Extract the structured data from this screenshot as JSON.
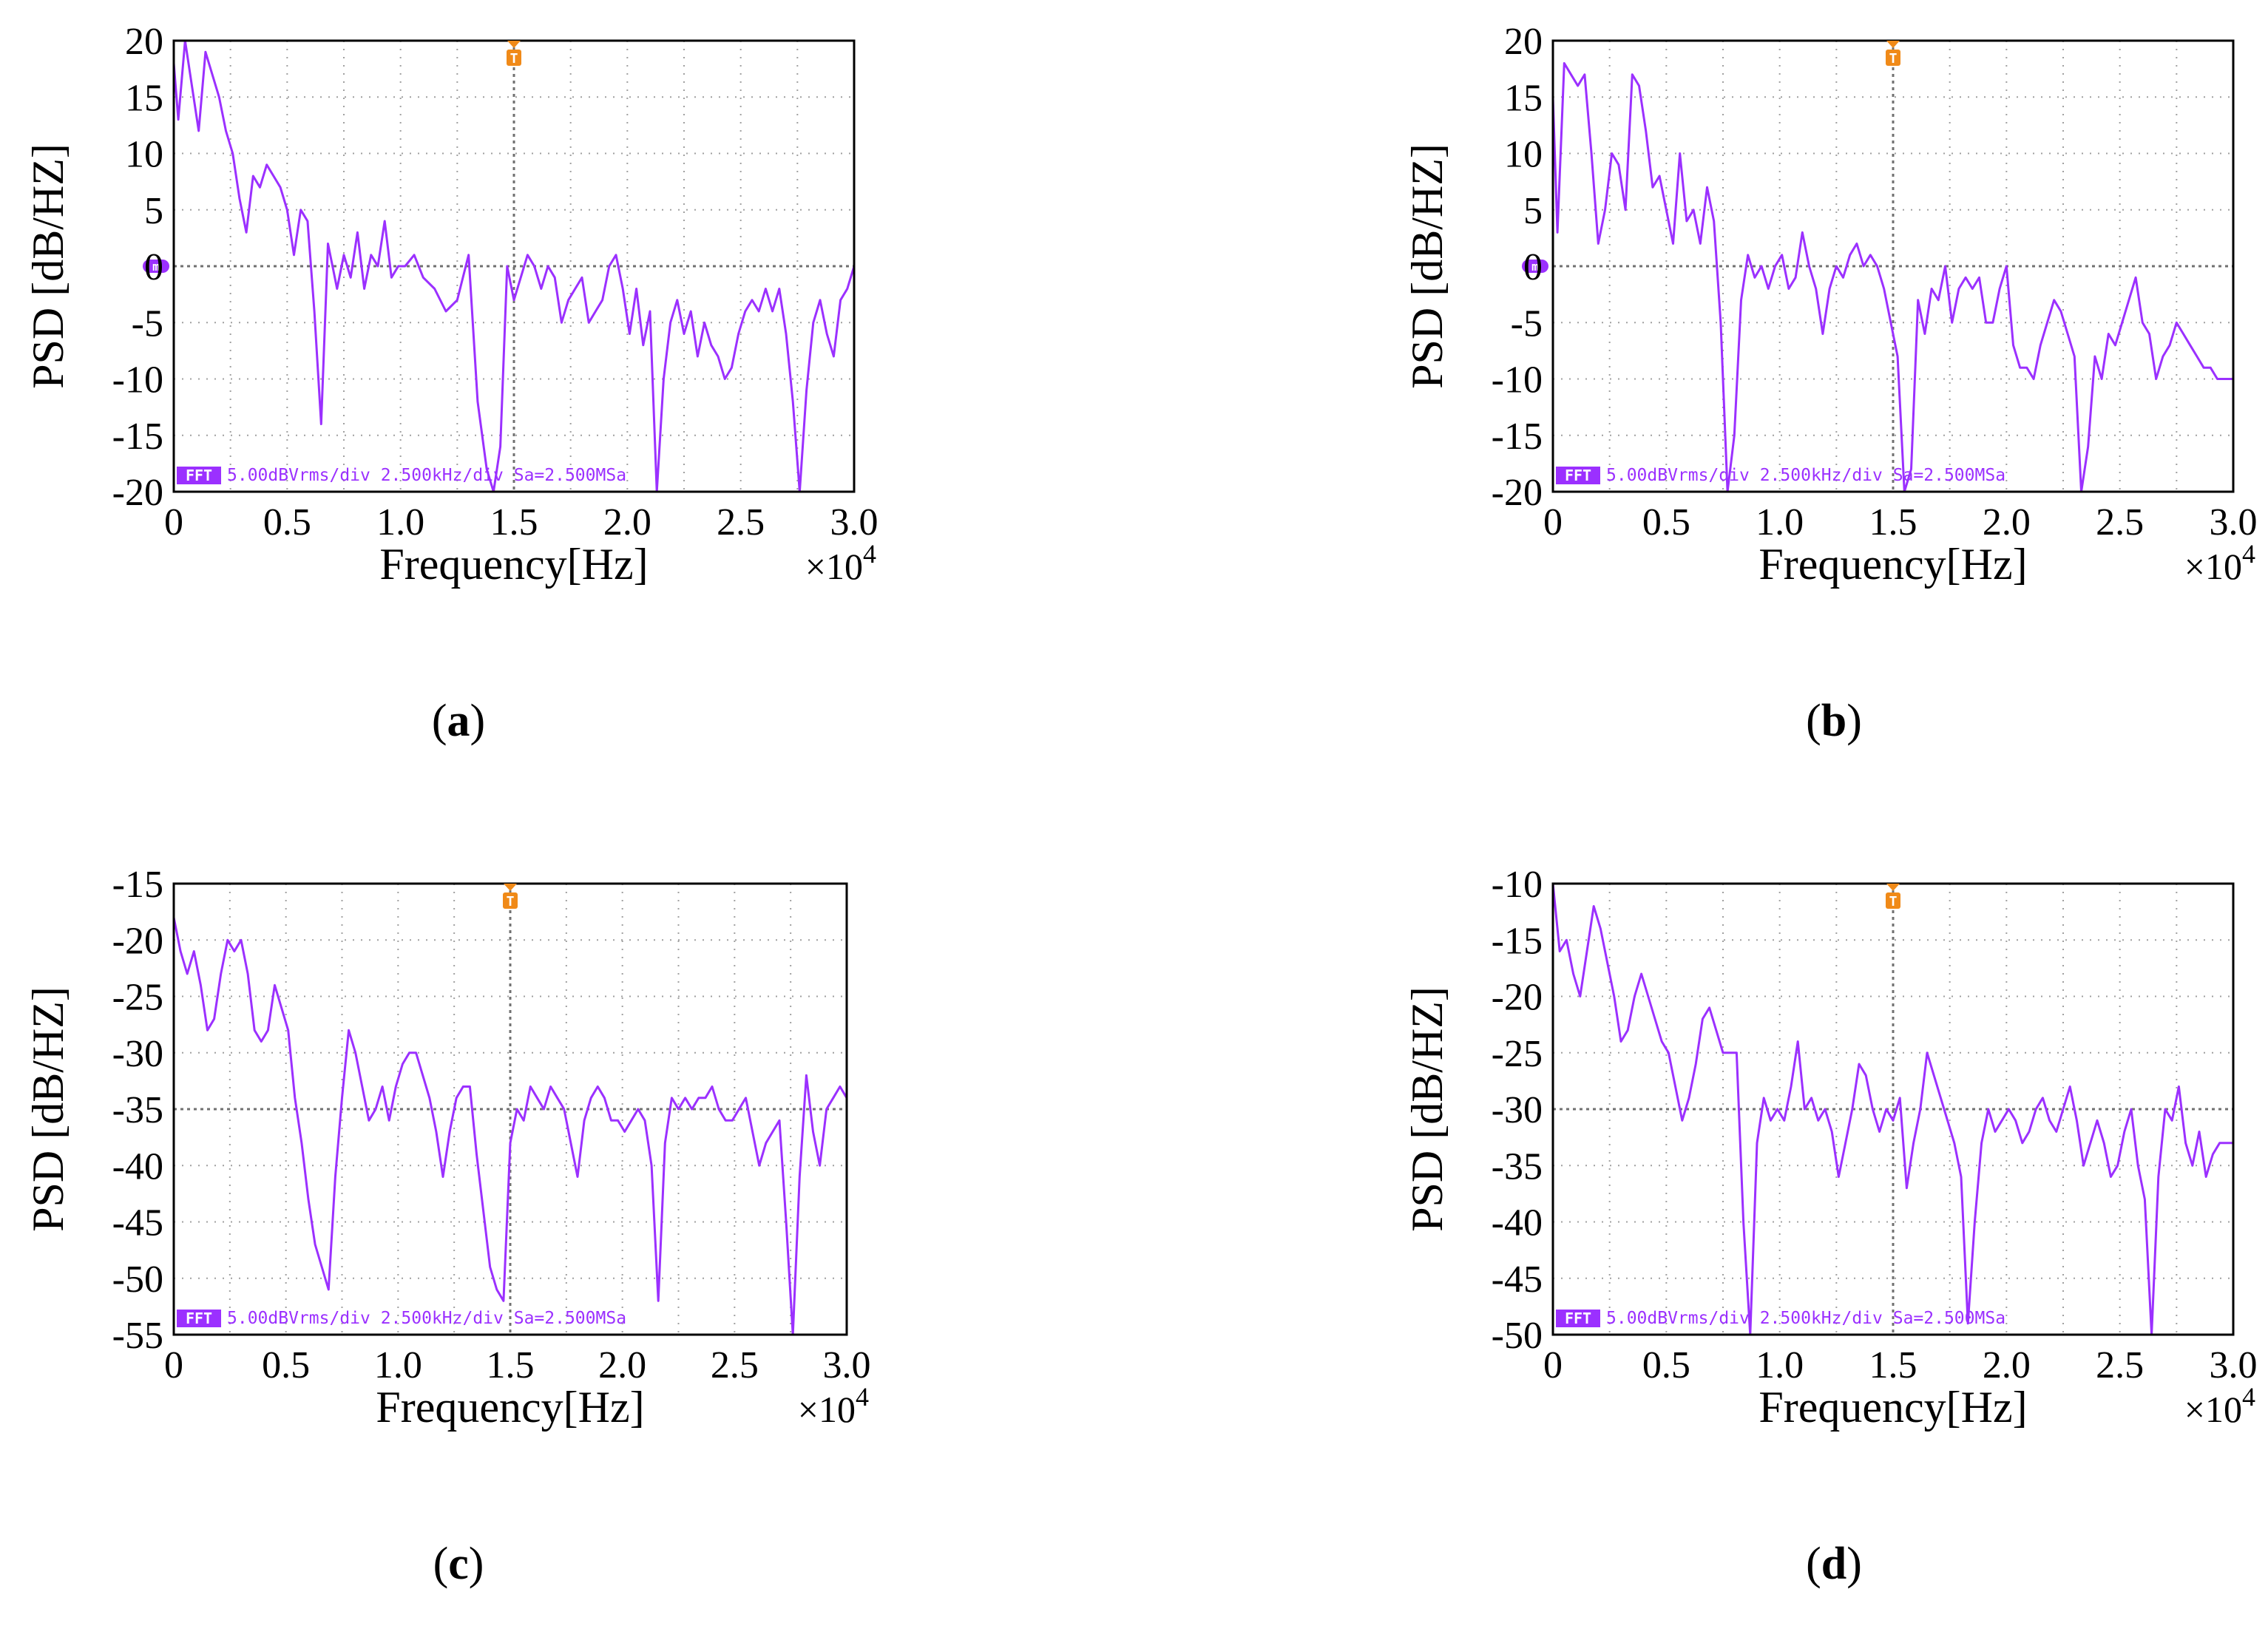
{
  "colors": {
    "trace": "#9b30ff",
    "marker": "#f08a18",
    "grid": "#a0a0a0",
    "axis": "#000000"
  },
  "chart_data": [
    {
      "id": "a",
      "type": "line",
      "caption": "a",
      "xlabel": "Frequency[Hz]",
      "ylabel": "PSD [dB/HZ]",
      "xlim": [
        0,
        30000
      ],
      "ylim": [
        -20,
        20
      ],
      "x_ticks": [
        "0",
        "0.5",
        "1.0",
        "1.5",
        "2.0",
        "2.5",
        "3.0"
      ],
      "y_ticks": [
        "20",
        "15",
        "10",
        "5",
        "0",
        "-5",
        "-10",
        "-15",
        "-20"
      ],
      "x_exponent_prefix": "×10",
      "x_exponent_power": "4",
      "scope_label": "FFT",
      "scope_info": "5.00dBVrms/div 2.500kHz/div Sa=2.500MSa",
      "marker_label": "T",
      "marker_x": 15000,
      "ground_label": "m",
      "ground_y": 0,
      "x": [
        0,
        200,
        500,
        800,
        1100,
        1400,
        1700,
        2000,
        2300,
        2600,
        2900,
        3200,
        3500,
        3800,
        4100,
        4400,
        4700,
        5000,
        5300,
        5600,
        5900,
        6200,
        6500,
        6800,
        7000,
        7200,
        7500,
        7800,
        8100,
        8400,
        8700,
        9000,
        9300,
        9600,
        9900,
        10200,
        10600,
        11000,
        11500,
        12000,
        12500,
        13000,
        13400,
        13800,
        14100,
        14400,
        14700,
        15000,
        15300,
        15600,
        15900,
        16200,
        16500,
        16800,
        17100,
        17400,
        17700,
        18000,
        18300,
        18600,
        18900,
        19200,
        19500,
        19800,
        20100,
        20400,
        20700,
        21000,
        21300,
        21600,
        21900,
        22200,
        22500,
        22800,
        23100,
        23400,
        23700,
        24000,
        24300,
        24600,
        24900,
        25200,
        25500,
        25800,
        26100,
        26400,
        26700,
        27000,
        27300,
        27600,
        27900,
        28200,
        28500,
        28800,
        29100,
        29400,
        29700,
        30000
      ],
      "values": [
        18,
        13,
        20,
        16,
        12,
        19,
        17,
        15,
        12,
        10,
        6,
        3,
        8,
        7,
        9,
        8,
        7,
        5,
        1,
        5,
        4,
        -4,
        -14,
        2,
        0,
        -2,
        1,
        -1,
        3,
        -2,
        1,
        0,
        4,
        -1,
        0,
        0,
        1,
        -1,
        -2,
        -4,
        -3,
        1,
        -12,
        -18,
        -20,
        -16,
        0,
        -3,
        -1,
        1,
        0,
        -2,
        0,
        -1,
        -5,
        -3,
        -2,
        -1,
        -5,
        -4,
        -3,
        0,
        1,
        -2,
        -6,
        -2,
        -7,
        -4,
        -20,
        -10,
        -5,
        -3,
        -6,
        -4,
        -8,
        -5,
        -7,
        -8,
        -10,
        -9,
        -6,
        -4,
        -3,
        -4,
        -2,
        -4,
        -2,
        -6,
        -12,
        -20,
        -11,
        -5,
        -3,
        -6,
        -8,
        -3,
        -2,
        0
      ]
    },
    {
      "id": "b",
      "type": "line",
      "caption": "b",
      "xlabel": "Frequency[Hz]",
      "ylabel": "PSD [dB/HZ]",
      "xlim": [
        0,
        30000
      ],
      "ylim": [
        -20,
        20
      ],
      "x_ticks": [
        "0",
        "0.5",
        "1.0",
        "1.5",
        "2.0",
        "2.5",
        "3.0"
      ],
      "y_ticks": [
        "20",
        "15",
        "10",
        "5",
        "0",
        "-5",
        "-10",
        "-15",
        "-20"
      ],
      "x_exponent_prefix": "×10",
      "x_exponent_power": "4",
      "scope_label": "FFT",
      "scope_info": "5.00dBVrms/div 2.500kHz/div Sa=2.500MSa",
      "marker_label": "T",
      "marker_x": 15000,
      "ground_label": "m",
      "ground_y": 0,
      "x": [
        0,
        200,
        500,
        800,
        1100,
        1400,
        1700,
        2000,
        2300,
        2600,
        2900,
        3200,
        3500,
        3800,
        4100,
        4400,
        4700,
        5000,
        5300,
        5600,
        5900,
        6200,
        6500,
        6800,
        7100,
        7400,
        7700,
        8000,
        8300,
        8600,
        8900,
        9200,
        9500,
        9800,
        10100,
        10400,
        10700,
        11000,
        11300,
        11600,
        11900,
        12200,
        12500,
        12800,
        13100,
        13400,
        13700,
        14000,
        14300,
        14600,
        14900,
        15200,
        15500,
        15800,
        16100,
        16400,
        16700,
        17000,
        17300,
        17600,
        17900,
        18200,
        18500,
        18800,
        19100,
        19400,
        19700,
        20000,
        20300,
        20600,
        20900,
        21200,
        21500,
        21800,
        22100,
        22400,
        22700,
        23000,
        23300,
        23600,
        23900,
        24200,
        24500,
        24800,
        25100,
        25400,
        25700,
        26000,
        26300,
        26600,
        26900,
        27200,
        27500,
        27800,
        28100,
        28400,
        28700,
        29000,
        29300,
        29700,
        30000
      ],
      "values": [
        15,
        3,
        18,
        17,
        16,
        17,
        10,
        2,
        5,
        10,
        9,
        5,
        17,
        16,
        12,
        7,
        8,
        5,
        2,
        10,
        4,
        5,
        2,
        7,
        4,
        -5,
        -20,
        -15,
        -3,
        1,
        -1,
        0,
        -2,
        0,
        1,
        -2,
        -1,
        3,
        0,
        -2,
        -6,
        -2,
        0,
        -1,
        1,
        2,
        0,
        1,
        0,
        -2,
        -5,
        -8,
        -20,
        -18,
        -3,
        -6,
        -2,
        -3,
        0,
        -5,
        -2,
        -1,
        -2,
        -1,
        -5,
        -5,
        -2,
        0,
        -7,
        -9,
        -9,
        -10,
        -7,
        -5,
        -3,
        -4,
        -6,
        -8,
        -20,
        -16,
        -8,
        -10,
        -6,
        -7,
        -5,
        -3,
        -1,
        -5,
        -6,
        -10,
        -8,
        -7,
        -5,
        -6,
        -7,
        -8,
        -9,
        -9,
        -10,
        -10,
        -10
      ]
    },
    {
      "id": "c",
      "type": "line",
      "caption": "c",
      "xlabel": "Frequency[Hz]",
      "ylabel": "PSD [dB/HZ]",
      "xlim": [
        0,
        30000
      ],
      "ylim": [
        -55,
        -15
      ],
      "x_ticks": [
        "0",
        "0.5",
        "1.0",
        "1.5",
        "2.0",
        "2.5",
        "3.0"
      ],
      "y_ticks": [
        "-15",
        "-20",
        "-25",
        "-30",
        "-35",
        "-40",
        "-45",
        "-50",
        "-55"
      ],
      "x_exponent_prefix": "×10",
      "x_exponent_power": "4",
      "scope_label": "FFT",
      "scope_info": "5.00dBVrms/div 2.500kHz/div Sa=2.500MSa",
      "marker_label": "T",
      "marker_x": 15000,
      "x": [
        0,
        300,
        600,
        900,
        1200,
        1500,
        1800,
        2100,
        2400,
        2700,
        3000,
        3300,
        3600,
        3900,
        4200,
        4500,
        4800,
        5100,
        5400,
        5700,
        6000,
        6300,
        6600,
        6900,
        7200,
        7500,
        7800,
        8100,
        8400,
        8700,
        9000,
        9300,
        9600,
        9900,
        10200,
        10500,
        10800,
        11100,
        11400,
        11700,
        12000,
        12300,
        12600,
        12900,
        13200,
        13500,
        13800,
        14100,
        14400,
        14700,
        15000,
        15300,
        15600,
        15900,
        16200,
        16500,
        16800,
        17100,
        17400,
        17700,
        18000,
        18300,
        18600,
        18900,
        19200,
        19500,
        19800,
        20100,
        20400,
        20700,
        21000,
        21300,
        21600,
        21900,
        22200,
        22500,
        22800,
        23100,
        23400,
        23700,
        24000,
        24300,
        24600,
        24900,
        25200,
        25500,
        25800,
        26100,
        26400,
        26700,
        27000,
        27300,
        27600,
        27900,
        28200,
        28500,
        28800,
        29100,
        29400,
        29700,
        30000
      ],
      "values": [
        -18,
        -21,
        -23,
        -21,
        -24,
        -28,
        -27,
        -23,
        -20,
        -21,
        -20,
        -23,
        -28,
        -29,
        -28,
        -24,
        -26,
        -28,
        -34,
        -38,
        -43,
        -47,
        -49,
        -51,
        -41,
        -34,
        -28,
        -30,
        -33,
        -36,
        -35,
        -33,
        -36,
        -33,
        -31,
        -30,
        -30,
        -32,
        -34,
        -37,
        -41,
        -37,
        -34,
        -33,
        -33,
        -39,
        -44,
        -49,
        -51,
        -52,
        -38,
        -35,
        -36,
        -33,
        -34,
        -35,
        -33,
        -34,
        -35,
        -38,
        -41,
        -36,
        -34,
        -33,
        -34,
        -36,
        -36,
        -37,
        -36,
        -35,
        -36,
        -40,
        -52,
        -38,
        -34,
        -35,
        -34,
        -35,
        -34,
        -34,
        -33,
        -35,
        -36,
        -36,
        -35,
        -34,
        -37,
        -40,
        -38,
        -37,
        -36,
        -45,
        -55,
        -41,
        -32,
        -37,
        -40,
        -35,
        -34,
        -33,
        -34
      ]
    },
    {
      "id": "d",
      "type": "line",
      "caption": "d",
      "xlabel": "Frequency[Hz]",
      "ylabel": "PSD [dB/HZ]",
      "xlim": [
        0,
        30000
      ],
      "ylim": [
        -50,
        -10
      ],
      "x_ticks": [
        "0",
        "0.5",
        "1.0",
        "1.5",
        "2.0",
        "2.5",
        "3.0"
      ],
      "y_ticks": [
        "-10",
        "-15",
        "-20",
        "-25",
        "-30",
        "-35",
        "-40",
        "-45",
        "-50"
      ],
      "x_exponent_prefix": "×10",
      "x_exponent_power": "4",
      "scope_label": "FFT",
      "scope_info": "5.00dBVrms/div 2.500kHz/div Sa=2.500MSa",
      "marker_label": "T",
      "marker_x": 15000,
      "x": [
        0,
        300,
        600,
        900,
        1200,
        1500,
        1800,
        2100,
        2400,
        2700,
        3000,
        3300,
        3600,
        3900,
        4200,
        4500,
        4800,
        5100,
        5400,
        5700,
        6000,
        6300,
        6600,
        6900,
        7200,
        7500,
        7800,
        8100,
        8400,
        8700,
        9000,
        9300,
        9600,
        9900,
        10200,
        10500,
        10800,
        11100,
        11400,
        11700,
        12000,
        12300,
        12600,
        12900,
        13200,
        13500,
        13800,
        14100,
        14400,
        14700,
        15000,
        15300,
        15600,
        15900,
        16200,
        16500,
        16800,
        17100,
        17400,
        17700,
        18000,
        18300,
        18600,
        18900,
        19200,
        19500,
        19800,
        20100,
        20400,
        20700,
        21000,
        21300,
        21600,
        21900,
        22200,
        22500,
        22800,
        23100,
        23400,
        23700,
        24000,
        24300,
        24600,
        24900,
        25200,
        25500,
        25800,
        26100,
        26400,
        26700,
        27000,
        27300,
        27600,
        27900,
        28200,
        28500,
        28800,
        29100,
        29400,
        29700,
        30000
      ],
      "values": [
        -10,
        -16,
        -15,
        -18,
        -20,
        -16,
        -12,
        -14,
        -17,
        -20,
        -24,
        -23,
        -20,
        -18,
        -20,
        -22,
        -24,
        -25,
        -28,
        -31,
        -29,
        -26,
        -22,
        -21,
        -23,
        -25,
        -25,
        -25,
        -40,
        -50,
        -33,
        -29,
        -31,
        -30,
        -31,
        -28,
        -24,
        -30,
        -29,
        -31,
        -30,
        -32,
        -36,
        -33,
        -30,
        -26,
        -27,
        -30,
        -32,
        -30,
        -31,
        -29,
        -37,
        -33,
        -30,
        -25,
        -27,
        -29,
        -31,
        -33,
        -36,
        -49,
        -40,
        -33,
        -30,
        -32,
        -31,
        -30,
        -31,
        -33,
        -32,
        -30,
        -29,
        -31,
        -32,
        -30,
        -28,
        -31,
        -35,
        -33,
        -31,
        -33,
        -36,
        -35,
        -32,
        -30,
        -35,
        -38,
        -50,
        -36,
        -30,
        -31,
        -28,
        -33,
        -35,
        -32,
        -36,
        -34,
        -33,
        -33,
        -33
      ]
    }
  ]
}
